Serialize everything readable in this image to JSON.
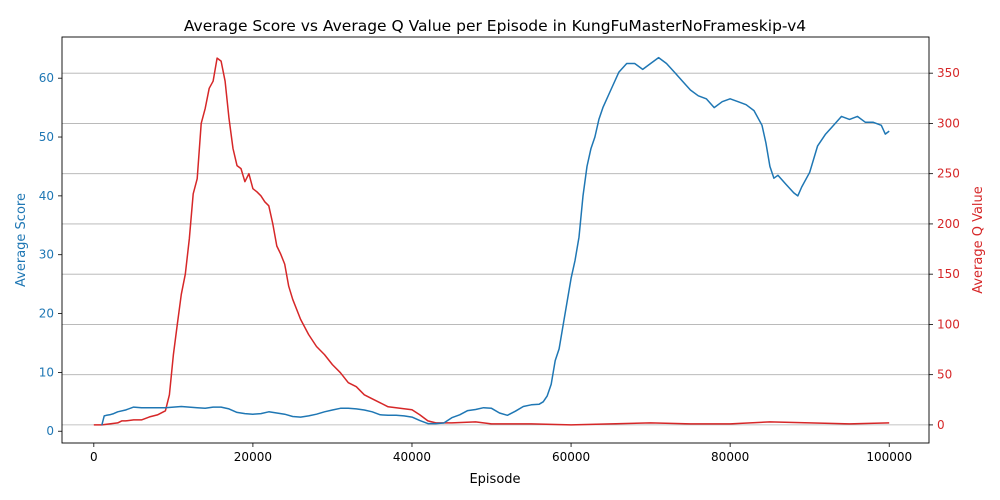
{
  "chart_data": {
    "type": "line",
    "title": "Average Score vs Average Q Value per Episode in KungFuMasterNoFrameskip-v4",
    "xlabel": "Episode",
    "ylabel_left": "Average Score",
    "ylabel_right": "Average Q Value",
    "xlim": [
      -4000,
      105000
    ],
    "ylim_left": [
      -2,
      67
    ],
    "ylim_right": [
      -18,
      386
    ],
    "x_ticks": [
      0,
      20000,
      40000,
      60000,
      80000,
      100000
    ],
    "y_ticks_left": [
      0,
      10,
      20,
      30,
      40,
      50,
      60
    ],
    "y_ticks_right": [
      0,
      50,
      100,
      150,
      200,
      250,
      300,
      350
    ],
    "grid": "horizontal lines on right axis",
    "colors": {
      "score": "#1f77b4",
      "q": "#d62728",
      "axis": "#000000",
      "grid": "#b0b0b0"
    },
    "series": [
      {
        "name": "Average Score",
        "axis": "left",
        "x": [
          1000,
          1300,
          1600,
          2000,
          2500,
          3000,
          4000,
          5000,
          6000,
          7000,
          8000,
          9000,
          10000,
          11000,
          12000,
          13000,
          14000,
          15000,
          16000,
          17000,
          18000,
          19000,
          20000,
          21000,
          22000,
          23000,
          24000,
          25000,
          26000,
          27000,
          28000,
          29000,
          30000,
          31000,
          32000,
          33000,
          34000,
          35000,
          36000,
          37000,
          38000,
          39000,
          40000,
          41000,
          42000,
          43000,
          44000,
          45000,
          46000,
          47000,
          48000,
          49000,
          50000,
          51000,
          52000,
          53000,
          54000,
          55000,
          56000,
          56500,
          57000,
          57500,
          58000,
          58500,
          59000,
          59500,
          60000,
          60500,
          61000,
          61500,
          62000,
          62500,
          63000,
          63500,
          64000,
          65000,
          66000,
          67000,
          68000,
          69000,
          70000,
          71000,
          72000,
          73000,
          74000,
          75000,
          76000,
          77000,
          78000,
          79000,
          80000,
          81000,
          82000,
          83000,
          84000,
          84500,
          85000,
          85500,
          86000,
          87000,
          88000,
          88500,
          89000,
          90000,
          91000,
          92000,
          93000,
          94000,
          95000,
          96000,
          97000,
          98000,
          99000,
          99500,
          100000
        ],
        "values": [
          1.0,
          2.6,
          2.7,
          2.8,
          3.0,
          3.3,
          3.6,
          4.1,
          4.0,
          4.0,
          4.0,
          4.0,
          4.1,
          4.2,
          4.1,
          4.0,
          3.9,
          4.1,
          4.1,
          3.8,
          3.2,
          3.0,
          2.9,
          3.0,
          3.3,
          3.1,
          2.9,
          2.5,
          2.4,
          2.6,
          2.9,
          3.3,
          3.6,
          3.9,
          3.9,
          3.8,
          3.6,
          3.3,
          2.8,
          2.7,
          2.7,
          2.6,
          2.4,
          1.8,
          1.3,
          1.3,
          1.4,
          2.3,
          2.8,
          3.5,
          3.7,
          4.0,
          3.9,
          3.1,
          2.7,
          3.4,
          4.2,
          4.5,
          4.6,
          5.0,
          6.0,
          8.0,
          12.0,
          14.0,
          18.0,
          22.0,
          26.0,
          29.0,
          33.0,
          40.0,
          45.0,
          48.0,
          50.0,
          53.0,
          55.0,
          58.0,
          61.0,
          62.5,
          62.5,
          61.5,
          62.5,
          63.5,
          62.5,
          61.0,
          59.5,
          58.0,
          57.0,
          56.5,
          55.0,
          56.0,
          56.5,
          56.0,
          55.5,
          54.5,
          52.0,
          49.0,
          45.0,
          43.0,
          43.5,
          42.0,
          40.5,
          40.0,
          41.5,
          44.0,
          48.5,
          50.5,
          52.0,
          53.5,
          53.0,
          53.5,
          52.5,
          52.5,
          52.0,
          50.5,
          51.0
        ]
      },
      {
        "name": "Average Q Value",
        "axis": "right",
        "x": [
          0,
          1000,
          2000,
          3000,
          3500,
          4000,
          5000,
          6000,
          7000,
          8000,
          9000,
          9500,
          10000,
          10500,
          11000,
          11500,
          12000,
          12500,
          13000,
          13500,
          14000,
          14500,
          15000,
          15500,
          16000,
          16500,
          17000,
          17500,
          18000,
          18500,
          19000,
          19500,
          20000,
          20500,
          21000,
          21500,
          22000,
          22500,
          23000,
          23500,
          24000,
          24500,
          25000,
          26000,
          27000,
          28000,
          29000,
          30000,
          31000,
          32000,
          33000,
          34000,
          35000,
          36000,
          37000,
          38000,
          39000,
          40000,
          41000,
          42000,
          43000,
          44000,
          45000,
          48000,
          50000,
          55000,
          60000,
          65000,
          70000,
          75000,
          80000,
          85000,
          90000,
          95000,
          100000
        ],
        "values": [
          0,
          0,
          1,
          2,
          4,
          4,
          5,
          5,
          8,
          10,
          14,
          30,
          70,
          100,
          130,
          150,
          185,
          230,
          245,
          300,
          315,
          335,
          342,
          365,
          362,
          342,
          305,
          275,
          258,
          255,
          242,
          250,
          235,
          232,
          228,
          222,
          218,
          200,
          178,
          170,
          160,
          138,
          125,
          105,
          90,
          78,
          70,
          60,
          52,
          42,
          38,
          30,
          26,
          22,
          18,
          17,
          16,
          15,
          10,
          4,
          2,
          2,
          2,
          3,
          1,
          1,
          0,
          1,
          2,
          1,
          1,
          3,
          2,
          1,
          2
        ]
      }
    ]
  }
}
